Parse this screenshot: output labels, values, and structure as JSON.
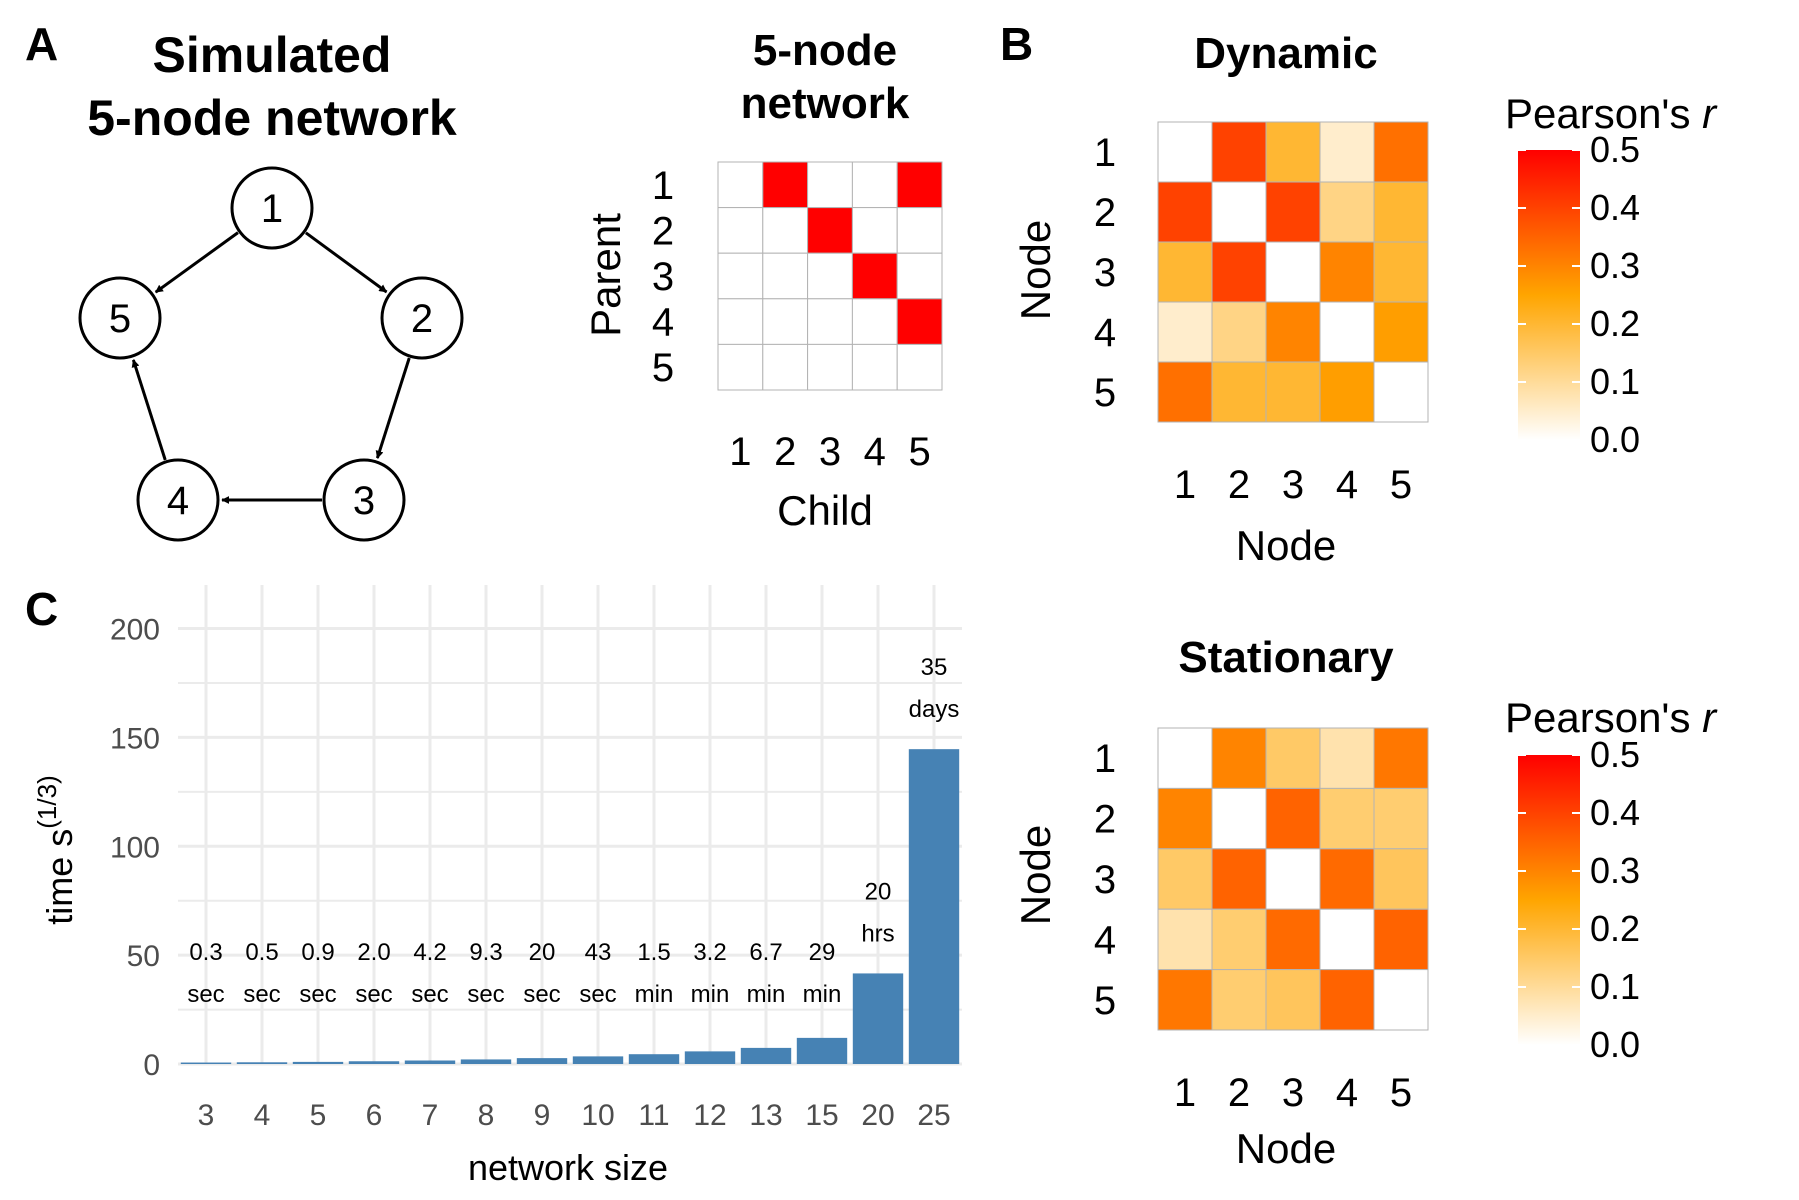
{
  "panel_labels": {
    "a": "A",
    "b": "B",
    "c": "C"
  },
  "network": {
    "title_line1": "Simulated",
    "title_line2": "5-node network",
    "nodes": [
      "1",
      "2",
      "3",
      "4",
      "5"
    ],
    "edges": [
      [
        "1",
        "2"
      ],
      [
        "2",
        "3"
      ],
      [
        "3",
        "4"
      ],
      [
        "4",
        "5"
      ],
      [
        "1",
        "5"
      ]
    ]
  },
  "colors": {
    "edge_red": "#ff0000",
    "heat_low": "#ffffff",
    "heat_mid": "#ffa500",
    "heat_high": "#ff0000",
    "bar": "#4682b4",
    "grid": "#ebebeb",
    "cell_border": "#b3b3b3"
  },
  "chart_data": [
    {
      "type": "heatmap",
      "title_line1": "5-node",
      "title_line2": "network",
      "xlabel": "Child",
      "ylabel": "Parent",
      "x_categories": [
        "1",
        "2",
        "3",
        "4",
        "5"
      ],
      "y_categories": [
        "1",
        "2",
        "3",
        "4",
        "5"
      ],
      "values": [
        [
          0,
          1,
          0,
          0,
          1
        ],
        [
          0,
          0,
          1,
          0,
          0
        ],
        [
          0,
          0,
          0,
          1,
          0
        ],
        [
          0,
          0,
          0,
          0,
          1
        ],
        [
          0,
          0,
          0,
          0,
          0
        ]
      ]
    },
    {
      "type": "heatmap",
      "title": "Dynamic",
      "xlabel": "Node",
      "ylabel": "Node",
      "x_categories": [
        "1",
        "2",
        "3",
        "4",
        "5"
      ],
      "y_categories": [
        "1",
        "2",
        "3",
        "4",
        "5"
      ],
      "legend_title": "Pearson's ",
      "legend_title_italic": "r",
      "legend_ticks": [
        "0.5",
        "0.4",
        "0.3",
        "0.2",
        "0.1",
        "0.0"
      ],
      "scale": [
        0,
        0.5
      ],
      "values": [
        [
          0,
          0.4,
          0.2,
          0.05,
          0.33
        ],
        [
          0.4,
          0,
          0.4,
          0.12,
          0.2
        ],
        [
          0.2,
          0.4,
          0,
          0.3,
          0.2
        ],
        [
          0.05,
          0.12,
          0.3,
          0,
          0.26
        ],
        [
          0.33,
          0.2,
          0.2,
          0.26,
          0
        ]
      ]
    },
    {
      "type": "heatmap",
      "title": "Stationary",
      "xlabel": "Node",
      "ylabel": "Node",
      "x_categories": [
        "1",
        "2",
        "3",
        "4",
        "5"
      ],
      "y_categories": [
        "1",
        "2",
        "3",
        "4",
        "5"
      ],
      "legend_title": "Pearson's ",
      "legend_title_italic": "r",
      "legend_ticks": [
        "0.5",
        "0.4",
        "0.3",
        "0.2",
        "0.1",
        "0.0"
      ],
      "scale": [
        0,
        0.5
      ],
      "values": [
        [
          0,
          0.3,
          0.15,
          0.08,
          0.32
        ],
        [
          0.3,
          0,
          0.35,
          0.14,
          0.14
        ],
        [
          0.15,
          0.35,
          0,
          0.34,
          0.16
        ],
        [
          0.08,
          0.14,
          0.34,
          0,
          0.35
        ],
        [
          0.32,
          0.14,
          0.16,
          0.35,
          0
        ]
      ]
    },
    {
      "type": "bar",
      "xlabel": "network size",
      "ylabel_base": "time s",
      "ylabel_sup": "(1/3)",
      "ylim": [
        0,
        220
      ],
      "y_ticks": [
        "0",
        "50",
        "100",
        "150",
        "200"
      ],
      "categories": [
        "3",
        "4",
        "5",
        "6",
        "7",
        "8",
        "9",
        "10",
        "11",
        "12",
        "13",
        "15",
        "20",
        "25"
      ],
      "values": [
        0.67,
        0.79,
        0.97,
        1.26,
        1.61,
        2.1,
        2.7,
        3.5,
        4.5,
        5.8,
        7.4,
        12.0,
        41.6,
        144.6
      ],
      "bar_labels": [
        [
          "0.3",
          "sec"
        ],
        [
          "0.5",
          "sec"
        ],
        [
          "0.9",
          "sec"
        ],
        [
          "2.0",
          "sec"
        ],
        [
          "4.2",
          "sec"
        ],
        [
          "9.3",
          "sec"
        ],
        [
          "20",
          "sec"
        ],
        [
          "43",
          "sec"
        ],
        [
          "1.5",
          "min"
        ],
        [
          "3.2",
          "min"
        ],
        [
          "6.7",
          "min"
        ],
        [
          "29",
          "min"
        ],
        [
          "20",
          "hrs"
        ],
        [
          "35",
          "days"
        ]
      ]
    }
  ]
}
